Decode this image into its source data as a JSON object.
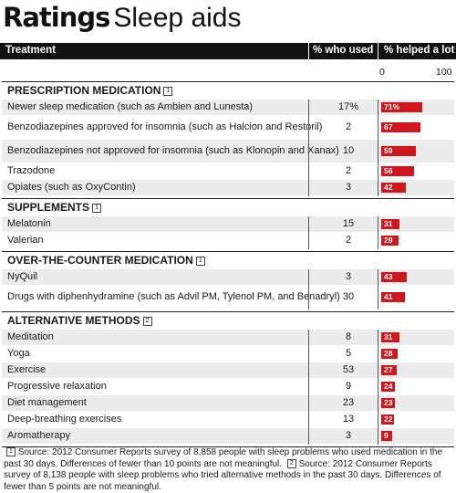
{
  "title_bold": "Ratings",
  "title_rest": "Sleep aids",
  "header": {
    "treatment": "Treatment",
    "used": "% who used",
    "helped": "% helped a lot"
  },
  "scale": {
    "min": "0",
    "max": "100"
  },
  "colors": {
    "bar": "#d0171e",
    "header_bg": "#111111",
    "row_shade": "#ececec"
  },
  "chart_data": {
    "type": "table",
    "xlim": [
      0,
      100
    ],
    "sections": [
      {
        "name": "PRESCRIPTION MEDICATION",
        "note": "1",
        "rows": [
          {
            "label": "Newer sleep medication (such as Ambien and Lunesta)",
            "used": "17%",
            "helped": 71,
            "helped_label": "71%"
          },
          {
            "label": "Benzodiazepines approved for insomnia (such as Halcion and Restoril)",
            "used": "2",
            "helped": 67,
            "helped_label": "67"
          },
          {
            "label": "Benzodiazepines not approved for insomnia (such as Klonopin and Xanax)",
            "used": "10",
            "helped": 59,
            "helped_label": "59"
          },
          {
            "label": "Trazodone",
            "used": "2",
            "helped": 56,
            "helped_label": "56"
          },
          {
            "label": "Opiates (such as OxyContin)",
            "used": "3",
            "helped": 42,
            "helped_label": "42"
          }
        ]
      },
      {
        "name": "SUPPLEMENTS",
        "note": "1",
        "rows": [
          {
            "label": "Melatonin",
            "used": "15",
            "helped": 31,
            "helped_label": "31"
          },
          {
            "label": "Valerian",
            "used": "2",
            "helped": 29,
            "helped_label": "29"
          }
        ]
      },
      {
        "name": "OVER-THE-COUNTER MEDICATION",
        "note": "1",
        "rows": [
          {
            "label": "NyQuil",
            "used": "3",
            "helped": 43,
            "helped_label": "43"
          },
          {
            "label": "Drugs with diphenhydramine (such as Advil PM, Tylenol PM, and Benadryl)",
            "used": "30",
            "helped": 41,
            "helped_label": "41"
          }
        ]
      },
      {
        "name": "ALTERNATIVE METHODS",
        "note": "2",
        "rows": [
          {
            "label": "Meditation",
            "used": "8",
            "helped": 31,
            "helped_label": "31"
          },
          {
            "label": "Yoga",
            "used": "5",
            "helped": 28,
            "helped_label": "28"
          },
          {
            "label": "Exercise",
            "used": "53",
            "helped": 27,
            "helped_label": "27"
          },
          {
            "label": "Progressive relaxation",
            "used": "9",
            "helped": 24,
            "helped_label": "24"
          },
          {
            "label": "Diet management",
            "used": "23",
            "helped": 23,
            "helped_label": "23"
          },
          {
            "label": "Deep-breathing exercises",
            "used": "13",
            "helped": 22,
            "helped_label": "22"
          },
          {
            "label": "Aromatherapy",
            "used": "3",
            "helped": 9,
            "helped_label": "9"
          }
        ]
      }
    ]
  },
  "footnotes": {
    "n1": "1",
    "text1": "Source: 2012 Consumer Reports survey of 8,858 people with sleep problems who used medication in the past 30 days. Differences of fewer than 10 points are not meaningful.",
    "n2": "2",
    "text2": "Source: 2012 Consumer Reports survey of 8,138 people with sleep problems who tried alternative methods in the past 30 days. Differences of fewer than 5 points are not meaningful."
  }
}
